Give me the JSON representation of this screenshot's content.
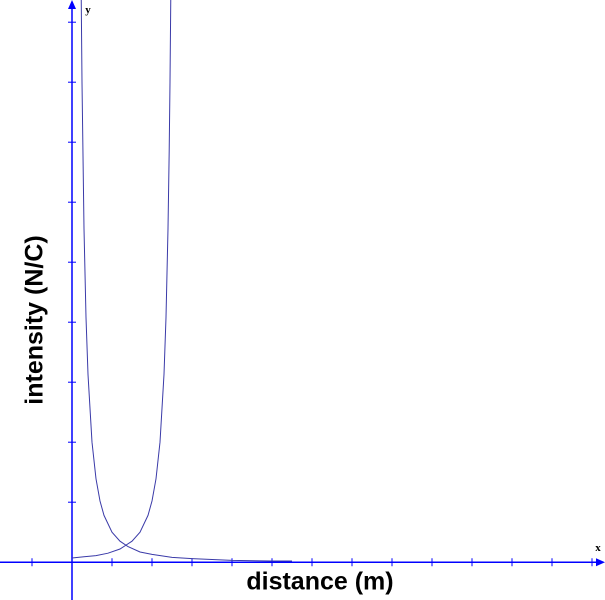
{
  "chart_data": {
    "type": "line",
    "x_axis_label": "x",
    "y_axis_label": "y",
    "xlabel": "distance (m)",
    "ylabel": "intensity (N/C)",
    "xlim": [
      -1.8,
      13.2
    ],
    "ylim": [
      -0.63,
      9.37
    ],
    "xticks": [
      -1,
      1,
      2,
      3,
      4,
      5,
      6,
      7,
      8,
      9,
      10,
      11,
      12,
      13
    ],
    "yticks": [
      1,
      2,
      3,
      4,
      5,
      6,
      7,
      8,
      9
    ],
    "axis_color": "#0000ff",
    "series": [
      {
        "color": "#3a3aa8",
        "x": [
          0.23,
          0.25,
          0.3,
          0.35,
          0.4,
          0.5,
          0.6,
          0.7,
          0.8,
          1,
          1.2,
          1.4,
          1.7,
          2,
          2.5,
          3,
          4,
          5,
          5.5
        ],
        "values": [
          9.45,
          8,
          5.56,
          4.08,
          3.13,
          2,
          1.39,
          1.02,
          0.78,
          0.5,
          0.35,
          0.26,
          0.17,
          0.13,
          0.08,
          0.06,
          0.03,
          0.02,
          0.02
        ]
      },
      {
        "color": "#3a3aa8",
        "x": [
          0,
          0.3,
          0.6,
          0.9,
          1.2,
          1.5,
          1.7,
          1.9,
          2.0,
          2.1,
          2.2,
          2.3,
          2.35,
          2.4,
          2.43,
          2.45,
          2.47
        ],
        "values": [
          0.07,
          0.09,
          0.11,
          0.15,
          0.22,
          0.35,
          0.5,
          0.78,
          1.02,
          1.39,
          2,
          3.13,
          4.08,
          5.56,
          6.86,
          8,
          9.45
        ]
      }
    ]
  }
}
